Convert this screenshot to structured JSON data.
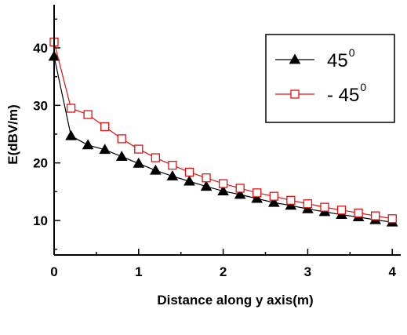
{
  "chart_data": {
    "type": "line",
    "xlabel": "Distance along y axis(m)",
    "ylabel": "E(dBV/m)",
    "xlim": [
      0,
      4.1
    ],
    "ylim": [
      4,
      47.5
    ],
    "xticks": [
      "0",
      "1",
      "2",
      "3",
      "4"
    ],
    "yticks": [
      "10",
      "20",
      "30",
      "40"
    ],
    "legend_position": "top-right",
    "series": [
      {
        "name": "45",
        "name_sup": "0",
        "color": "#000000",
        "marker": "filled-triangle",
        "x": [
          0,
          0.2,
          0.4,
          0.6,
          0.8,
          1.0,
          1.2,
          1.4,
          1.6,
          1.8,
          2.0,
          2.2,
          2.4,
          2.6,
          2.8,
          3.0,
          3.2,
          3.4,
          3.6,
          3.8,
          4.0
        ],
        "y": [
          38.5,
          24.7,
          23.1,
          22.3,
          21.1,
          19.9,
          18.7,
          17.7,
          16.8,
          15.9,
          15.1,
          14.5,
          13.8,
          13.1,
          12.6,
          12.0,
          11.5,
          11.0,
          10.6,
          10.1,
          9.7
        ]
      },
      {
        "name": "- 45",
        "name_sup": "0",
        "color": "#e01010",
        "marker": "open-square",
        "x": [
          0,
          0.2,
          0.4,
          0.6,
          0.8,
          1.0,
          1.2,
          1.4,
          1.6,
          1.8,
          2.0,
          2.2,
          2.4,
          2.6,
          2.8,
          3.0,
          3.2,
          3.4,
          3.6,
          3.8,
          4.0
        ],
        "y": [
          41.0,
          29.5,
          28.4,
          26.3,
          24.2,
          22.4,
          20.9,
          19.6,
          18.4,
          17.4,
          16.4,
          15.6,
          14.8,
          14.2,
          13.5,
          12.9,
          12.3,
          11.8,
          11.3,
          10.8,
          10.3
        ]
      }
    ]
  }
}
